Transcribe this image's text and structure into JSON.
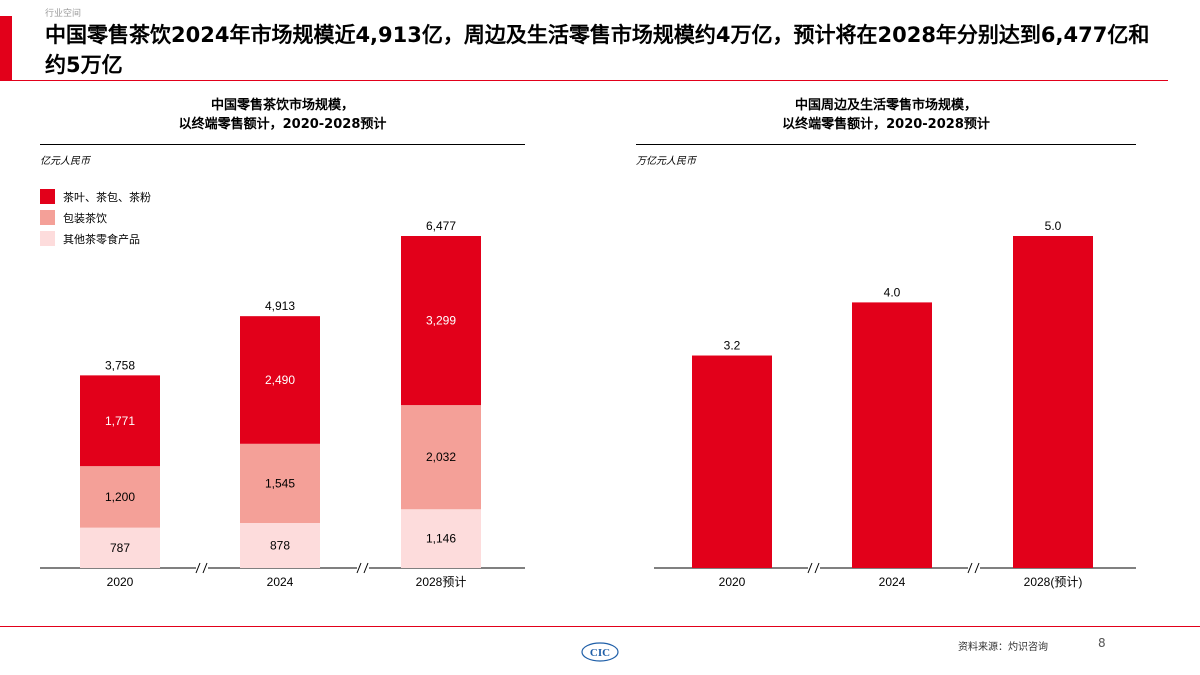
{
  "header": {
    "section_tag": "行业空间",
    "headline": "中国零售茶饮2024年市场规模近4,913亿，周边及生活零售市场规模约4万亿，预计将在2028年分别达到6,477亿和约5万亿",
    "accent_color": "#e2001a"
  },
  "footer": {
    "source": "资料来源：灼识咨询",
    "page_number": "8",
    "logo_text": "CIC"
  },
  "chart_data": [
    {
      "type": "bar",
      "stacked": true,
      "title_line1": "中国零售茶饮市场规模，",
      "title_line2": "以终端零售额计，2020-2028预计",
      "unit": "亿元人民币",
      "categories": [
        "2020",
        "2024",
        "2028预计"
      ],
      "series": [
        {
          "name": "茶叶、茶包、茶粉",
          "color": "#e2001a",
          "values": [
            1771,
            2490,
            3299
          ]
        },
        {
          "name": "包装茶饮",
          "color": "#f4a098",
          "values": [
            1200,
            1545,
            2032
          ]
        },
        {
          "name": "其他茶零食产品",
          "color": "#fddcdc",
          "values": [
            787,
            878,
            1146
          ]
        }
      ],
      "segment_labels": [
        [
          "1,771",
          "2,490",
          "3,299"
        ],
        [
          "1,200",
          "1,545",
          "2,032"
        ],
        [
          "787",
          "878",
          "1,146"
        ]
      ],
      "totals": [
        3758,
        4913,
        6477
      ],
      "total_labels": [
        "3,758",
        "4,913",
        "6,477"
      ],
      "ylim": [
        0,
        6477
      ],
      "axis_break": true,
      "legend_position": "top-left",
      "grid": false
    },
    {
      "type": "bar",
      "title_line1": "中国周边及生活零售市场规模，",
      "title_line2": "以终端零售额计，2020-2028预计",
      "unit": "万亿元人民币",
      "categories": [
        "2020",
        "2024",
        "2028(预计)"
      ],
      "values": [
        3.2,
        4.0,
        5.0
      ],
      "value_labels": [
        "3.2",
        "4.0",
        "5.0"
      ],
      "color": "#e2001a",
      "ylim": [
        0,
        5.0
      ],
      "axis_break": true,
      "grid": false
    }
  ]
}
